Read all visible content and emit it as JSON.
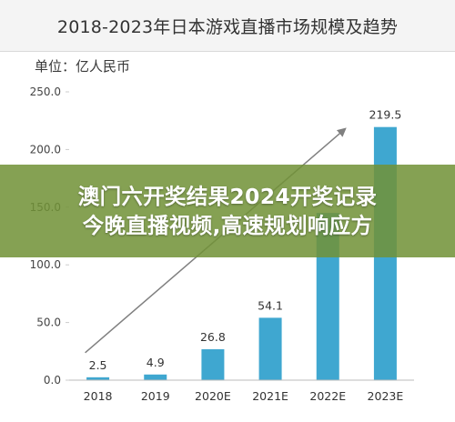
{
  "chart_title": "2018-2023年日本游戏直播市场规模及趋势",
  "unit_label": "单位：亿人民币",
  "overlay": {
    "line1": "澳门六开奖结果2024开奖记录",
    "line2": "今晚直播视频,高速规划响应方"
  },
  "colors": {
    "bar": "#3fa7d0",
    "trend_arrow": "#808080",
    "overlay": "#71913a"
  },
  "chart_data": {
    "type": "bar",
    "title": "2018-2023年日本游戏直播市场规模及趋势",
    "ylabel": "单位：亿人民币",
    "xlabel": "",
    "categories": [
      "2018",
      "2019",
      "2020E",
      "2021E",
      "2022E",
      "2023E"
    ],
    "values": [
      2.5,
      4.9,
      26.8,
      54.1,
      145.0,
      219.5
    ],
    "value_labels": [
      "2.5",
      "4.9",
      "26.8",
      "54.1",
      "",
      "219.5"
    ],
    "ylim": [
      0,
      250
    ],
    "yticks": [
      0,
      50,
      100,
      150,
      200,
      250
    ],
    "ytick_labels": [
      "0.0",
      "50.0",
      "100.0",
      "150.0",
      "200.0",
      "250.0"
    ],
    "grid": false,
    "trend_arrow": true
  }
}
